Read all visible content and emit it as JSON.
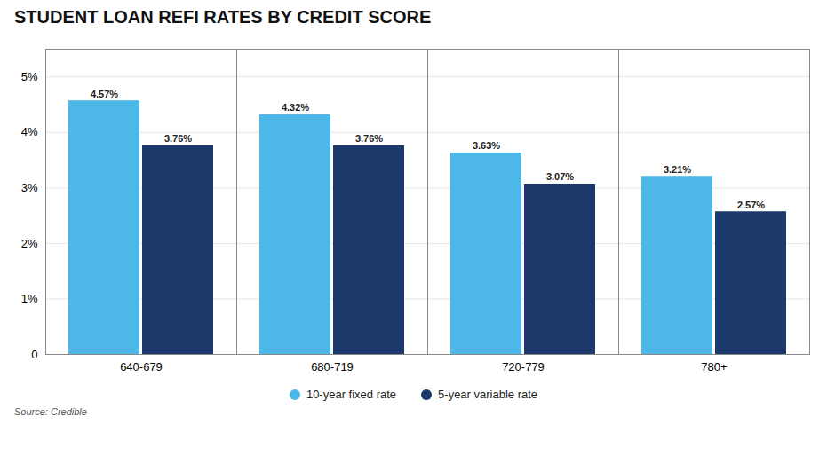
{
  "chart_data": {
    "type": "bar",
    "title": "STUDENT LOAN REFI RATES BY CREDIT SCORE",
    "categories": [
      "640-679",
      "680-719",
      "720-779",
      "780+"
    ],
    "series": [
      {
        "name": "10-year fixed rate",
        "color": "#4DB8E8",
        "values": [
          4.57,
          4.32,
          3.63,
          3.21
        ],
        "value_labels": [
          "4.57%",
          "4.32%",
          "3.63%",
          "3.21%"
        ]
      },
      {
        "name": "5-year variable rate",
        "color": "#1B3A6B",
        "values": [
          3.76,
          3.76,
          3.07,
          2.57
        ],
        "value_labels": [
          "3.76%",
          "3.76%",
          "3.07%",
          "2.57%"
        ]
      }
    ],
    "ylim": [
      0,
      5.5
    ],
    "yticks": [
      0,
      {
        "value": 1,
        "label": "1%"
      },
      {
        "value": 2,
        "label": "2%"
      },
      {
        "value": 3,
        "label": "3%"
      },
      {
        "value": 4,
        "label": "4%"
      },
      {
        "value": 5,
        "label": "5%"
      }
    ],
    "grid": true,
    "data_labels": true,
    "legend": "bottom",
    "source": "Source: Credible"
  }
}
